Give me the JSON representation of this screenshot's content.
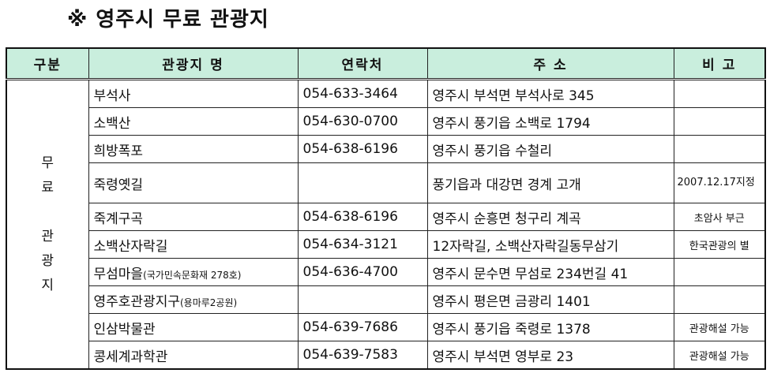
{
  "title": "※ 영주시 무료 관광지",
  "headers": [
    "구분",
    "관광지 명",
    "연락처",
    "주 소",
    "비 고"
  ],
  "category": [
    "무",
    "료",
    "",
    "관",
    "광",
    "지"
  ],
  "rows": [
    {
      "name": "부석사",
      "sub": "",
      "phone": "054-633-3464",
      "addr": "영주시 부석면 부석사로 345",
      "note": ""
    },
    {
      "name": "소백산",
      "sub": "",
      "phone": "054-630-0700",
      "addr": "영주시 풍기읍 소백로 1794",
      "note": ""
    },
    {
      "name": "희방폭포",
      "sub": "",
      "phone": "054-638-6196",
      "addr": "영주시 풍기읍 수철리",
      "note": ""
    },
    {
      "name": "죽령옛길",
      "sub": "",
      "phone": "",
      "addr": "풍기읍과 대강면 경계 고개",
      "note": "2007.12.17지정"
    },
    {
      "name": "죽계구곡",
      "sub": "",
      "phone": "054-638-6196",
      "addr": "영주시 순흥면 청구리 계곡",
      "note": "초암사 부근"
    },
    {
      "name": "소백산자락길",
      "sub": "",
      "phone": "054-634-3121",
      "addr": "12자락길, 소백산자락길동무삼기",
      "note": "한국관광의 별"
    },
    {
      "name": "무섬마을",
      "sub": "(국가민속문화재 278호)",
      "phone": "054-636-4700",
      "addr": "영주시 문수면 무섬로 234번길 41",
      "note": ""
    },
    {
      "name": "영주호관광지구",
      "sub": "(용마루2공원)",
      "phone": "",
      "addr": "영주시 평은면 금광리 1401",
      "note": ""
    },
    {
      "name": "인삼박물관",
      "sub": "",
      "phone": "054-639-7686",
      "addr": "영주시 풍기읍 죽령로 1378",
      "note": "관광해설 가능"
    },
    {
      "name": "콩세계과학관",
      "sub": "",
      "phone": "054-639-7583",
      "addr": "영주시 부석면 영부로 23",
      "note": "관광해설 가능"
    }
  ],
  "colors": {
    "header_bg": "#c9eedd"
  }
}
